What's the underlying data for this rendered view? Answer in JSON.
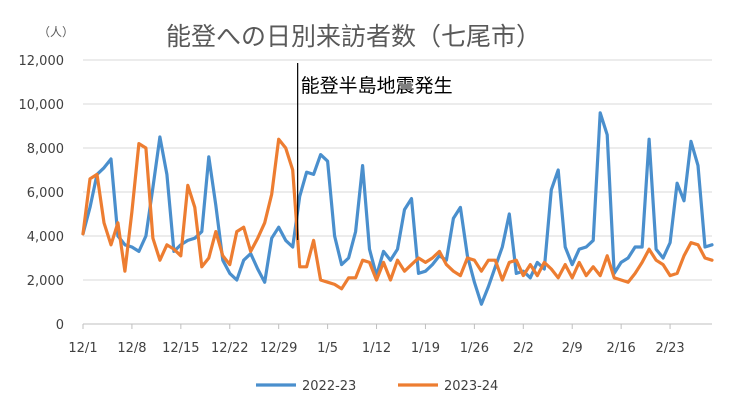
{
  "chart_data": {
    "type": "line",
    "title": "能登への日別来訪者数（七尾市）",
    "unit_label": "（人）",
    "annotation": "能登半島地震発生",
    "annotation_index": 31,
    "ylim": [
      0,
      12000
    ],
    "y_ticks": [
      "0",
      "2,000",
      "4,000",
      "6,000",
      "8,000",
      "10,000",
      "12,000"
    ],
    "y_tick_values": [
      0,
      2000,
      4000,
      6000,
      8000,
      10000,
      12000
    ],
    "x_ticks": [
      {
        "label": "12/1",
        "index": 0
      },
      {
        "label": "12/8",
        "index": 7
      },
      {
        "label": "12/15",
        "index": 14
      },
      {
        "label": "12/22",
        "index": 21
      },
      {
        "label": "12/29",
        "index": 28
      },
      {
        "label": "1/5",
        "index": 35
      },
      {
        "label": "1/12",
        "index": 42
      },
      {
        "label": "1/19",
        "index": 49
      },
      {
        "label": "1/26",
        "index": 56
      },
      {
        "label": "2/2",
        "index": 63
      },
      {
        "label": "2/9",
        "index": 70
      },
      {
        "label": "2/16",
        "index": 77
      },
      {
        "label": "2/23",
        "index": 84
      }
    ],
    "grid": true,
    "legend_position": "bottom",
    "series": [
      {
        "name": "2022-23",
        "color": "#4a8fcd",
        "values": [
          4100,
          5300,
          6800,
          7100,
          7500,
          4000,
          3600,
          3500,
          3300,
          4000,
          6200,
          8500,
          6800,
          3300,
          3600,
          3800,
          3900,
          4200,
          7600,
          5400,
          2900,
          2300,
          2000,
          2900,
          3200,
          2500,
          1900,
          3900,
          4400,
          3800,
          3500,
          5800,
          6900,
          6800,
          7700,
          7400,
          4000,
          2700,
          3000,
          4200,
          7200,
          3400,
          2200,
          3300,
          2900,
          3400,
          5200,
          5700,
          2300,
          2400,
          2700,
          3100,
          2900,
          4800,
          5300,
          3100,
          1900,
          900,
          1700,
          2600,
          3500,
          5000,
          2300,
          2400,
          2100,
          2800,
          2500,
          6100,
          7000,
          3500,
          2700,
          3400,
          3500,
          3800,
          9600,
          8600,
          2300,
          2800,
          3000,
          3500,
          3500,
          8400,
          3400,
          3000,
          3700,
          6400,
          5600,
          8300,
          7200,
          3500,
          3600
        ],
        "color_note": "blue"
      },
      {
        "name": "2023-24",
        "color": "#ed7d31",
        "values": [
          4100,
          6600,
          6800,
          4600,
          3600,
          4600,
          2400,
          5100,
          8200,
          8000,
          3900,
          2900,
          3600,
          3400,
          3100,
          6300,
          5300,
          2600,
          3000,
          4200,
          3100,
          2700,
          4200,
          4400,
          3300,
          3900,
          4600,
          5900,
          8400,
          8000,
          7000,
          2600,
          2600,
          3800,
          2000,
          1900,
          1800,
          1600,
          2100,
          2100,
          2900,
          2800,
          2000,
          2800,
          2000,
          2900,
          2400,
          2700,
          3000,
          2800,
          3000,
          3300,
          2700,
          2400,
          2200,
          3000,
          2900,
          2400,
          2900,
          2900,
          2000,
          2800,
          2900,
          2200,
          2700,
          2200,
          2800,
          2500,
          2100,
          2700,
          2100,
          2800,
          2200,
          2600,
          2200,
          3100,
          2100,
          2000,
          1900,
          2300,
          2800,
          3400,
          2900,
          2700,
          2200,
          2300,
          3100,
          3700,
          3600,
          3000,
          2900
        ],
        "color_note": "orange"
      }
    ]
  }
}
